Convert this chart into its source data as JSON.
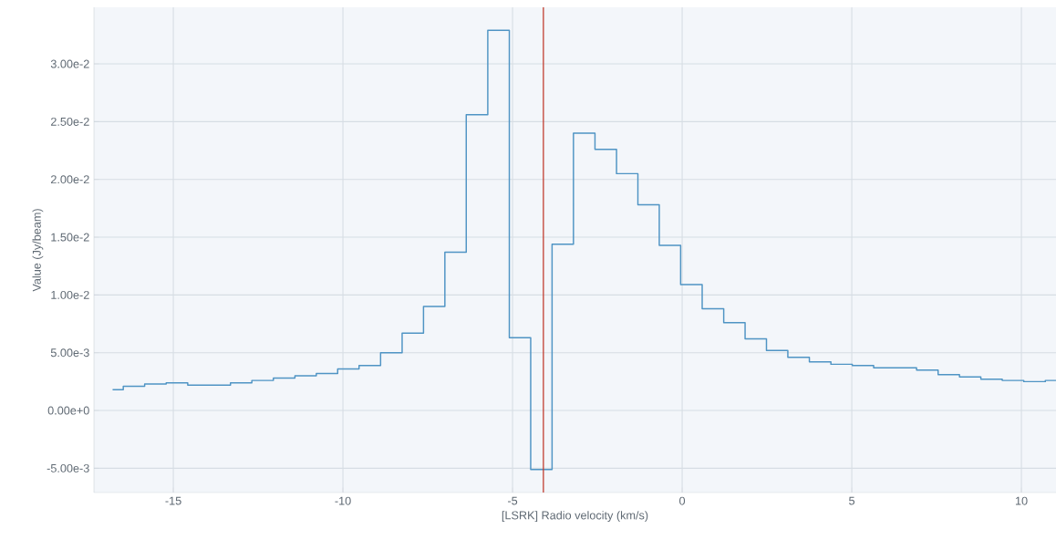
{
  "chart_data": {
    "type": "step",
    "xlabel": "[LSRK] Radio velocity (km/s)",
    "ylabel": "Value (Jy/beam)",
    "x": [
      -16.79,
      -16.16,
      -15.53,
      -14.89,
      -14.26,
      -13.63,
      -13.0,
      -12.37,
      -11.73,
      -11.1,
      -10.47,
      -9.84,
      -9.21,
      -8.57,
      -7.94,
      -7.31,
      -6.68,
      -6.05,
      -5.41,
      -4.78,
      -4.15,
      -3.52,
      -2.89,
      -2.25,
      -1.62,
      -0.99,
      -0.36,
      0.27,
      0.91,
      1.54,
      2.17,
      2.8,
      3.43,
      4.07,
      4.7,
      5.33,
      5.96,
      6.59,
      7.23,
      7.86,
      8.49,
      9.12,
      9.75,
      10.39,
      11.02
    ],
    "series": [
      {
        "color": "#4f94c4",
        "values": [
          0.0018,
          0.0021,
          0.0023,
          0.0024,
          0.0022,
          0.0022,
          0.0024,
          0.0026,
          0.0028,
          0.003,
          0.0032,
          0.0036,
          0.0039,
          0.005,
          0.0067,
          0.009,
          0.0137,
          0.0256,
          0.0329,
          0.0063,
          -0.0051,
          0.0144,
          0.024,
          0.0226,
          0.0205,
          0.0178,
          0.0143,
          0.0109,
          0.0088,
          0.0076,
          0.0062,
          0.0052,
          0.0046,
          0.0042,
          0.004,
          0.0039,
          0.0037,
          0.0037,
          0.0035,
          0.0031,
          0.0029,
          0.0027,
          0.0026,
          0.0025,
          0.0026
        ]
      }
    ],
    "xlim": [
      -17.34,
      11.02
    ],
    "ylim": [
      -0.0071,
      0.0349
    ],
    "xticks": [
      -15,
      -10,
      -5,
      0,
      5,
      10
    ],
    "yticks": [
      {
        "value": -0.005,
        "label": "-5.00e-3"
      },
      {
        "value": 0,
        "label": "0.00e+0"
      },
      {
        "value": 0.005,
        "label": "5.00e-3"
      },
      {
        "value": 0.01,
        "label": "1.00e-2"
      },
      {
        "value": 0.015,
        "label": "1.50e-2"
      },
      {
        "value": 0.02,
        "label": "2.00e-2"
      },
      {
        "value": 0.025,
        "label": "2.50e-2"
      },
      {
        "value": 0.03,
        "label": "3.00e-2"
      }
    ],
    "ref_lines": [
      {
        "axis": "x",
        "value": -4.09,
        "color": "#c0392b"
      }
    ],
    "grid": true
  }
}
